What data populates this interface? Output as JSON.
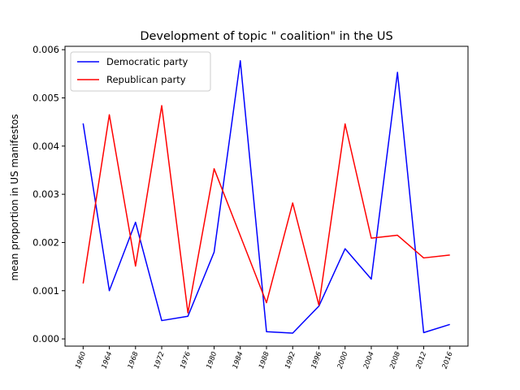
{
  "chart_data": {
    "type": "line",
    "title": "Development of topic \" coalition\" in the US",
    "xlabel": "",
    "ylabel": "mean proportion in US manifestos",
    "x": [
      "1960",
      "1964",
      "1968",
      "1972",
      "1976",
      "1980",
      "1984",
      "1988",
      "1992",
      "1996",
      "2000",
      "2004",
      "2008",
      "2012",
      "2016"
    ],
    "y_ticks": [
      "0.000",
      "0.001",
      "0.002",
      "0.003",
      "0.004",
      "0.005",
      "0.006"
    ],
    "ylim": [
      -0.00015,
      0.00607
    ],
    "grid": false,
    "legend_position": "top-left",
    "series": [
      {
        "name": "Democratic party",
        "color": "#0000ff",
        "values": [
          0.00447,
          0.001,
          0.00242,
          0.00038,
          0.00047,
          0.0018,
          0.00577,
          0.00015,
          0.00012,
          0.00068,
          0.00187,
          0.00124,
          0.00553,
          0.00013,
          0.0003
        ]
      },
      {
        "name": "Republican party",
        "color": "#ff0000",
        "values": [
          0.00115,
          0.00465,
          0.00151,
          0.00484,
          0.00054,
          0.00353,
          0.00214,
          0.00075,
          0.00282,
          0.0007,
          0.00446,
          0.00209,
          0.00215,
          0.00168,
          0.00174
        ]
      }
    ]
  }
}
